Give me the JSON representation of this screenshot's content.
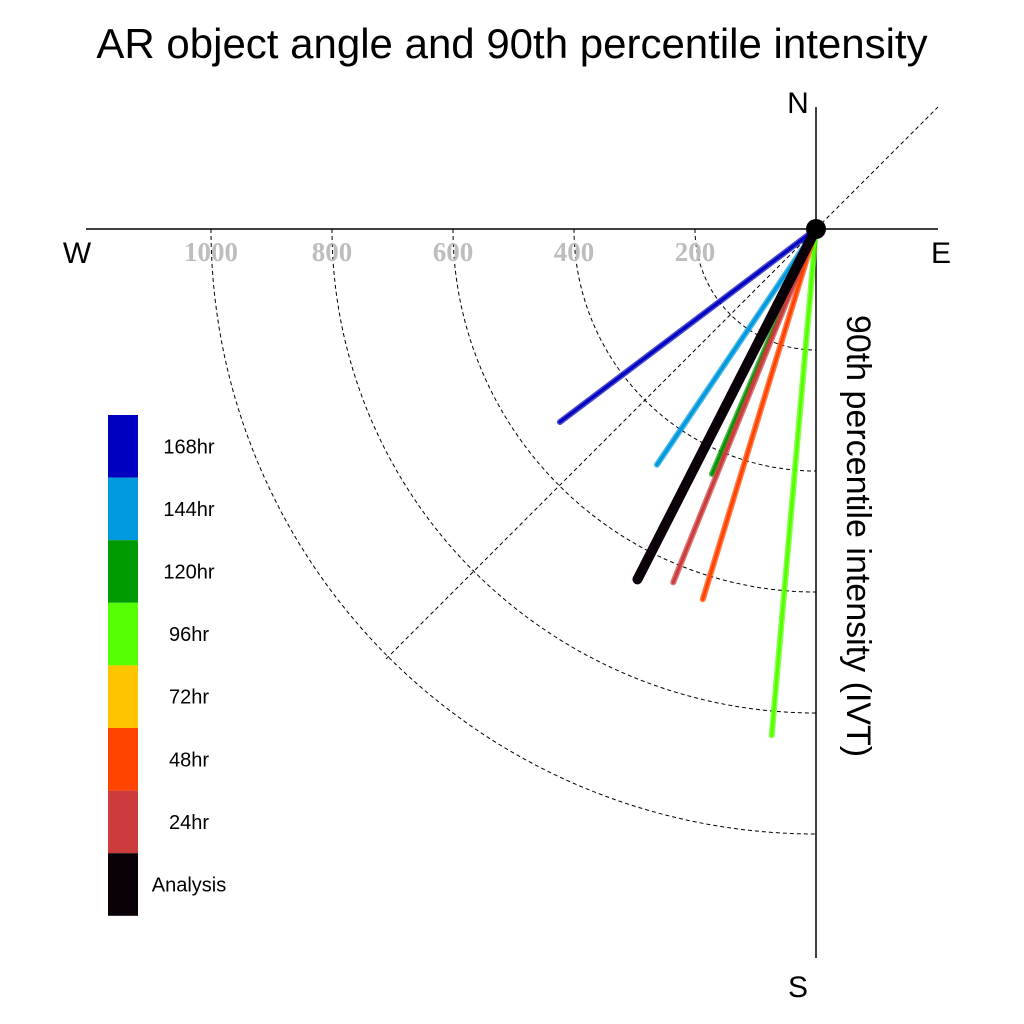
{
  "chart_data": {
    "type": "polar",
    "title": "AR object angle and 90th percentile intensity",
    "ylabel": "90th percentile intensity (IVT)",
    "compass": {
      "north": "N",
      "south": "S",
      "east": "E",
      "west": "W"
    },
    "radial_ticks": [
      200,
      400,
      600,
      800,
      1000
    ],
    "radial_tick_labels": [
      "200",
      "400",
      "600",
      "800",
      "1000"
    ],
    "r_max": 1200,
    "series": [
      {
        "name": "168hr",
        "color": "#0000c0",
        "angle_deg": 217,
        "intensity": 530
      },
      {
        "name": "144hr",
        "color": "#0099dd",
        "angle_deg": 236,
        "intensity": 470
      },
      {
        "name": "120hr",
        "color": "#009900",
        "angle_deg": 247,
        "intensity": 440
      },
      {
        "name": "96hr",
        "color": "#55ff00",
        "angle_deg": 265,
        "intensity": 840
      },
      {
        "name": "72hr",
        "color": "#ffc400",
        "angle_deg": null,
        "intensity": null
      },
      {
        "name": "48hr",
        "color": "#ff4400",
        "angle_deg": 253,
        "intensity": 640
      },
      {
        "name": "24hr",
        "color": "#cc3c3c",
        "angle_deg": 248,
        "intensity": 630
      },
      {
        "name": "Analysis",
        "color": "#0a0008",
        "angle_deg": 243,
        "intensity": 650
      }
    ]
  }
}
